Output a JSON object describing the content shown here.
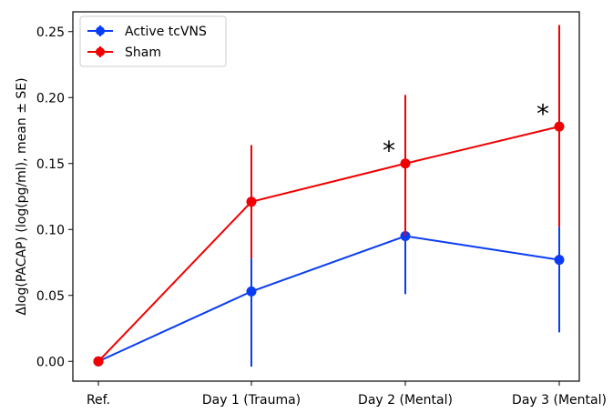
{
  "chart_data": {
    "type": "line",
    "title": "",
    "xlabel": "",
    "ylabel": "Δlog(PACAP) (log(pg/ml), mean ± SE)",
    "categories": [
      "Ref.",
      "Day 1 (Trauma)",
      "Day 2 (Mental)",
      "Day 3 (Mental)"
    ],
    "ylim": [
      -0.015,
      0.265
    ],
    "yticks": [
      0.0,
      0.05,
      0.1,
      0.15,
      0.2,
      0.25
    ],
    "ytick_labels": [
      "0.00",
      "0.05",
      "0.10",
      "0.15",
      "0.20",
      "0.25"
    ],
    "grid": false,
    "legend_position": "top-left",
    "series": [
      {
        "name": "Active tcVNS",
        "color": "#0a3cf5",
        "values": [
          0.0,
          0.053,
          0.095,
          0.077
        ],
        "err_low": [
          0.0,
          -0.004,
          0.051,
          0.022
        ],
        "err_high": [
          0.0,
          0.078,
          0.095,
          0.102
        ]
      },
      {
        "name": "Sham",
        "color": "#f00000",
        "values": [
          0.0,
          0.121,
          0.15,
          0.178
        ],
        "err_low": [
          0.0,
          0.078,
          0.095,
          0.102
        ],
        "err_high": [
          0.0,
          0.164,
          0.202,
          0.255
        ]
      }
    ],
    "annotations": [
      {
        "text": "*",
        "category": "Day 2 (Mental)",
        "y": 0.163
      },
      {
        "text": "*",
        "category": "Day 3 (Mental)",
        "y": 0.191
      }
    ]
  }
}
